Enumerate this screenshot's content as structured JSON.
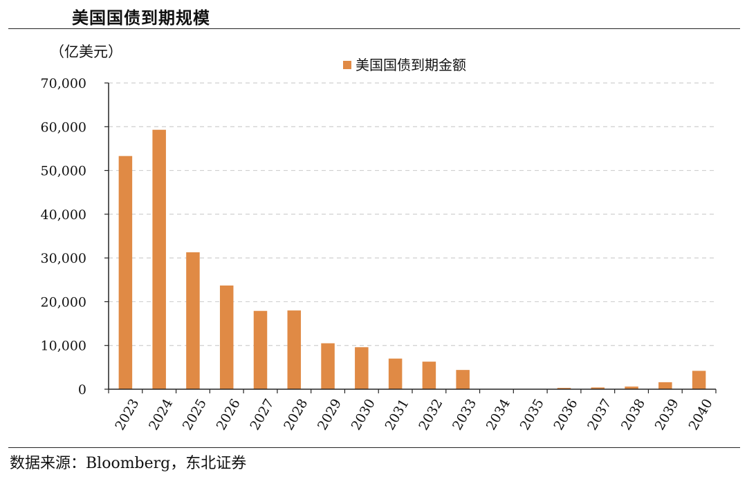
{
  "title": "美国国债到期规模",
  "source": "数据来源：Bloomberg，东北证券",
  "chart_data": {
    "type": "bar",
    "unit_label": "（亿美元）",
    "categories": [
      "2023",
      "2024",
      "2025",
      "2026",
      "2027",
      "2028",
      "2029",
      "2030",
      "2031",
      "2032",
      "2033",
      "2034",
      "2035",
      "2036",
      "2037",
      "2038",
      "2039",
      "2040"
    ],
    "series": [
      {
        "name": "美国国债到期金额",
        "color": "#E08A45",
        "values": [
          53300,
          59300,
          31300,
          23700,
          17900,
          18000,
          10500,
          9600,
          7000,
          6300,
          4400,
          0,
          0,
          300,
          400,
          600,
          1600,
          4200
        ]
      }
    ],
    "yticks": [
      "0",
      "10,000",
      "20,000",
      "30,000",
      "40,000",
      "50,000",
      "60,000",
      "70,000"
    ],
    "ylim": [
      0,
      70000
    ],
    "grid": true,
    "legend_position": "top-center"
  }
}
